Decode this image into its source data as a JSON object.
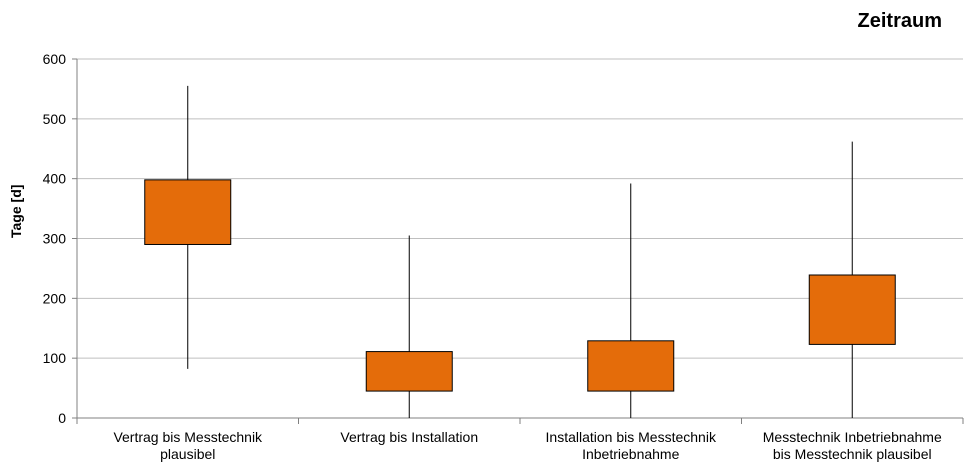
{
  "chart_data": {
    "type": "boxplot",
    "title": "Zeitraum",
    "xlabel": "",
    "ylabel": "Tage [d]",
    "ylim": [
      0,
      600
    ],
    "yticks": [
      0,
      100,
      200,
      300,
      400,
      500,
      600
    ],
    "grid": true,
    "categories": [
      [
        "Vertrag bis Messtechnik",
        "plausibel"
      ],
      [
        "Vertrag bis Installation"
      ],
      [
        "Installation bis Messtechnik",
        "Inbetriebnahme"
      ],
      [
        "Messtechnik Inbetriebnahme",
        "bis Messtechnik plausibel"
      ]
    ],
    "boxes": [
      {
        "min": 82,
        "q1": 290,
        "q3": 398,
        "max": 555
      },
      {
        "min": 0,
        "q1": 45,
        "q3": 111,
        "max": 305
      },
      {
        "min": 0,
        "q1": 45,
        "q3": 129,
        "max": 392
      },
      {
        "min": 0,
        "q1": 123,
        "q3": 239,
        "max": 462
      }
    ],
    "box_color": "#E46C0A",
    "box_stroke": "#000000",
    "grid_color": "#BFBFBF"
  }
}
